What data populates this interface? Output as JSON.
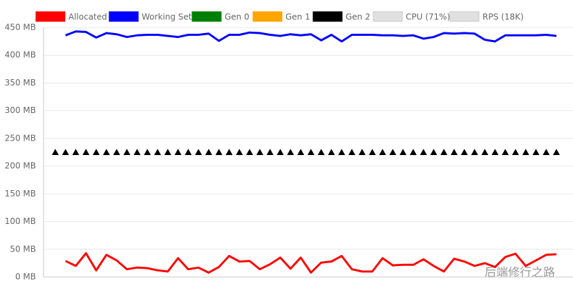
{
  "chart_data": {
    "type": "line",
    "categories": [
      null,
      null,
      null,
      null,
      null,
      null,
      null,
      null,
      null,
      null,
      null,
      null,
      null,
      null,
      null,
      null,
      null,
      null,
      null,
      null,
      null,
      null,
      null,
      null,
      null,
      null,
      null,
      null,
      null,
      null,
      null,
      null,
      null,
      null,
      null,
      null,
      null,
      null,
      null,
      null,
      null,
      null,
      null,
      null,
      null,
      null,
      null,
      null,
      null,
      null
    ],
    "series": [
      {
        "name": "Allocated",
        "color": "#ff0000",
        "values": [
          null,
          29,
          20,
          43,
          12,
          40,
          30,
          14,
          17,
          16,
          12,
          10,
          34,
          14,
          17,
          8,
          18,
          38,
          28,
          29,
          14,
          23,
          35,
          15,
          35,
          8,
          26,
          28,
          38,
          14,
          10,
          10,
          34,
          21,
          22,
          22,
          32,
          20,
          10,
          33,
          28,
          20,
          25,
          18,
          36,
          42,
          20,
          30,
          40,
          41
        ]
      },
      {
        "name": "Working Set",
        "color": "#0000ff",
        "values": [
          null,
          436,
          443,
          442,
          432,
          440,
          438,
          433,
          436,
          437,
          437,
          435,
          433,
          437,
          437,
          439,
          426,
          437,
          437,
          441,
          440,
          437,
          435,
          438,
          436,
          438,
          427,
          437,
          425,
          437,
          437,
          437,
          436,
          436,
          435,
          436,
          430,
          433,
          440,
          439,
          440,
          439,
          428,
          425,
          436,
          436,
          436,
          436,
          437,
          435
        ]
      },
      {
        "name": "Gen 0",
        "color": "#008000",
        "values": [
          null,
          null,
          null,
          null,
          null,
          null,
          null,
          null,
          null,
          null,
          null,
          null,
          null,
          null,
          null,
          null,
          null,
          null,
          null,
          null,
          null,
          null,
          null,
          null,
          null,
          null,
          null,
          null,
          null,
          null,
          null,
          null,
          null,
          null,
          null,
          null,
          null,
          null,
          null,
          null,
          null,
          null,
          null,
          null,
          null,
          null,
          null,
          null,
          null,
          null
        ]
      },
      {
        "name": "Gen 1",
        "color": "#ffa500",
        "values": [
          null,
          null,
          null,
          null,
          null,
          null,
          null,
          null,
          null,
          null,
          null,
          null,
          null,
          null,
          null,
          null,
          null,
          null,
          null,
          null,
          null,
          null,
          null,
          null,
          null,
          null,
          null,
          null,
          null,
          null,
          null,
          null,
          null,
          null,
          null,
          null,
          null,
          null,
          null,
          null,
          null,
          null,
          null,
          null,
          null,
          null,
          null,
          null,
          null,
          null
        ]
      },
      {
        "name": "Gen 2",
        "color": "#000000",
        "marker": "triangle",
        "values": [
          225,
          225,
          225,
          225,
          225,
          225,
          225,
          225,
          225,
          225,
          225,
          225,
          225,
          225,
          225,
          225,
          225,
          225,
          225,
          225,
          225,
          225,
          225,
          225,
          225,
          225,
          225,
          225,
          225,
          225,
          225,
          225,
          225,
          225,
          225,
          225,
          225,
          225,
          225,
          225,
          225,
          225,
          225,
          225,
          225,
          225,
          225,
          225,
          225,
          225
        ]
      },
      {
        "name": "CPU (71%)",
        "color": "#e0e0e0",
        "hidden": true,
        "values": [
          null,
          null,
          null,
          null,
          null,
          null,
          null,
          null,
          null,
          null,
          null,
          null,
          null,
          null,
          null,
          null,
          null,
          null,
          null,
          null,
          null,
          null,
          null,
          null,
          null,
          null,
          null,
          null,
          null,
          null,
          null,
          null,
          null,
          null,
          null,
          null,
          null,
          null,
          null,
          null,
          null,
          null,
          null,
          null,
          null,
          null,
          null,
          null,
          null,
          null
        ]
      },
      {
        "name": "RPS (18K)",
        "color": "#e0e0e0",
        "hidden": true,
        "values": [
          null,
          null,
          null,
          null,
          null,
          null,
          null,
          null,
          null,
          null,
          null,
          null,
          null,
          null,
          null,
          null,
          null,
          null,
          null,
          null,
          null,
          null,
          null,
          null,
          null,
          null,
          null,
          null,
          null,
          null,
          null,
          null,
          null,
          null,
          null,
          null,
          null,
          null,
          null,
          null,
          null,
          null,
          null,
          null,
          null,
          null,
          null,
          null,
          null,
          null
        ]
      }
    ],
    "ylim": [
      0,
      450
    ],
    "yticks": [
      {
        "value": 0,
        "label": "0 MB"
      },
      {
        "value": 50,
        "label": "50 MB"
      },
      {
        "value": 100,
        "label": "100 MB"
      },
      {
        "value": 150,
        "label": "150 MB"
      },
      {
        "value": 200,
        "label": "200 MB"
      },
      {
        "value": 250,
        "label": "250 MB"
      },
      {
        "value": 300,
        "label": "300 MB"
      },
      {
        "value": 350,
        "label": "350 MB"
      },
      {
        "value": 400,
        "label": "400 MB"
      },
      {
        "value": 450,
        "label": "450 MB"
      }
    ],
    "grid": true,
    "legend": "top",
    "watermark": "后端修行之路"
  }
}
